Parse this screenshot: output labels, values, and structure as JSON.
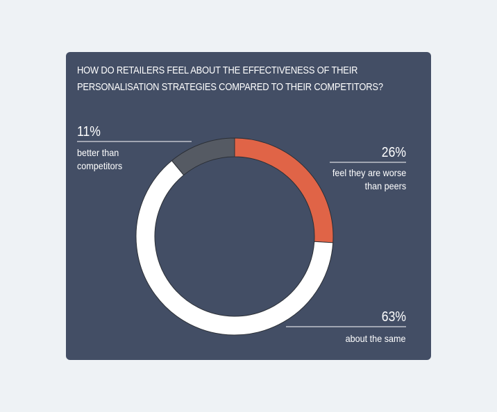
{
  "chart_data": {
    "type": "pie",
    "style": "donut",
    "title_lines": [
      "How do retailers feel about the effectiveness of their",
      "personalisation strategies compared to their competitors?"
    ],
    "slices": [
      {
        "name": "worse",
        "label": "feel they are worse than peers",
        "label_lines": [
          "feel they are worse",
          "than peers"
        ],
        "value": 26,
        "display": "26%",
        "color": "#e06447"
      },
      {
        "name": "same",
        "label": "about the same",
        "label_lines": [
          "about the same"
        ],
        "value": 63,
        "display": "63%",
        "color": "#ffffff"
      },
      {
        "name": "better",
        "label": "better than competitors",
        "label_lines": [
          "better than",
          "competitors"
        ],
        "value": 11,
        "display": "11%",
        "color": "#555a63"
      }
    ]
  },
  "colors": {
    "background": "#eef2f5",
    "card": "#434e65",
    "outline": "#2b2f36"
  }
}
